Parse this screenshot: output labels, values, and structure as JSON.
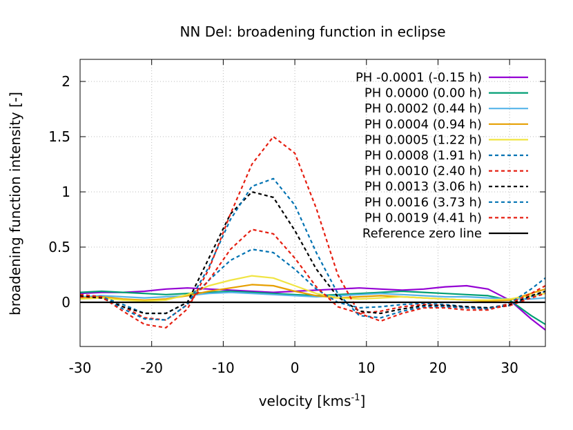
{
  "chart_data": {
    "type": "line",
    "title": "NN Del: broadening function in eclipse",
    "xlabel": "velocity [kms",
    "xlabel_sup": "-1",
    "xlabel_end": "]",
    "ylabel": "broadening function intensity [-]",
    "xlim": [
      -30,
      35
    ],
    "ylim": [
      -0.4,
      2.2
    ],
    "xticks": [
      -30,
      -20,
      -10,
      0,
      10,
      20,
      30
    ],
    "yticks": [
      0,
      0.5,
      1,
      1.5,
      2
    ],
    "xtick_labels": [
      "-30",
      "-20",
      "-10",
      "0",
      "10",
      "20",
      "30"
    ],
    "ytick_labels": [
      "0",
      "0.5",
      "1",
      "1.5",
      "2"
    ],
    "grid": true,
    "legend_position": "top-right",
    "series": [
      {
        "name": "PH -0.0001 (-0.15 h)",
        "color": "#9400d3",
        "dash": "solid",
        "x": [
          -30,
          -27,
          -24,
          -21,
          -18,
          -15,
          -12,
          -9,
          -6,
          -3,
          0,
          3,
          6,
          9,
          12,
          15,
          18,
          21,
          24,
          27,
          30,
          33,
          35
        ],
        "y": [
          0.08,
          0.09,
          0.09,
          0.1,
          0.12,
          0.13,
          0.12,
          0.11,
          0.1,
          0.09,
          0.1,
          0.11,
          0.12,
          0.13,
          0.12,
          0.11,
          0.12,
          0.14,
          0.15,
          0.12,
          0.02,
          -0.15,
          -0.25
        ]
      },
      {
        "name": "PH 0.0000 (0.00 h)",
        "color": "#009e73",
        "dash": "solid",
        "x": [
          -30,
          -27,
          -24,
          -21,
          -18,
          -15,
          -12,
          -9,
          -6,
          -3,
          0,
          3,
          6,
          9,
          12,
          15,
          18,
          21,
          24,
          27,
          30,
          33,
          35
        ],
        "y": [
          0.09,
          0.1,
          0.09,
          0.08,
          0.07,
          0.08,
          0.09,
          0.1,
          0.09,
          0.08,
          0.07,
          0.06,
          0.07,
          0.08,
          0.09,
          0.1,
          0.09,
          0.08,
          0.07,
          0.06,
          0.02,
          -0.12,
          -0.2
        ]
      },
      {
        "name": "PH 0.0002 (0.44 h)",
        "color": "#56b4e9",
        "dash": "solid",
        "x": [
          -30,
          -27,
          -24,
          -21,
          -18,
          -15,
          -12,
          -9,
          -6,
          -3,
          0,
          3,
          6,
          9,
          12,
          15,
          18,
          21,
          24,
          27,
          30,
          33,
          35
        ],
        "y": [
          0.05,
          0.06,
          0.05,
          0.04,
          0.05,
          0.06,
          0.08,
          0.09,
          0.08,
          0.07,
          0.06,
          0.05,
          0.06,
          0.07,
          0.08,
          0.07,
          0.06,
          0.05,
          0.05,
          0.04,
          0.03,
          0.03,
          0.04
        ]
      },
      {
        "name": "PH 0.0004 (0.94 h)",
        "color": "#e69f00",
        "dash": "solid",
        "x": [
          -30,
          -27,
          -24,
          -21,
          -18,
          -15,
          -12,
          -9,
          -6,
          -3,
          0,
          3,
          6,
          9,
          12,
          15,
          18,
          21,
          24,
          27,
          30,
          33,
          35
        ],
        "y": [
          0.04,
          0.05,
          0.03,
          0.02,
          0.03,
          0.06,
          0.1,
          0.13,
          0.16,
          0.15,
          0.1,
          0.06,
          0.04,
          0.05,
          0.06,
          0.05,
          0.04,
          0.03,
          0.02,
          0.01,
          0.02,
          0.08,
          0.12
        ]
      },
      {
        "name": "PH 0.0005 (1.22 h)",
        "color": "#f0e442",
        "dash": "solid",
        "x": [
          -30,
          -27,
          -24,
          -21,
          -18,
          -15,
          -12,
          -9,
          -6,
          -3,
          0,
          3,
          6,
          9,
          12,
          15,
          18,
          21,
          24,
          27,
          30,
          33,
          35
        ],
        "y": [
          0.03,
          0.04,
          0.02,
          0.01,
          0.02,
          0.07,
          0.15,
          0.2,
          0.24,
          0.22,
          0.15,
          0.08,
          0.04,
          0.03,
          0.04,
          0.05,
          0.04,
          0.03,
          0.02,
          0.02,
          0.03,
          0.06,
          0.08
        ]
      },
      {
        "name": "PH 0.0008 (1.91 h)",
        "color": "#0072b2",
        "dash": "dashed",
        "x": [
          -30,
          -27,
          -24,
          -21,
          -18,
          -15,
          -12,
          -9,
          -6,
          -3,
          0,
          3,
          6,
          9,
          12,
          15,
          18,
          21,
          24,
          27,
          30,
          33,
          35
        ],
        "y": [
          0.06,
          0.05,
          -0.02,
          -0.1,
          -0.1,
          0.0,
          0.2,
          0.38,
          0.48,
          0.45,
          0.3,
          0.12,
          0.0,
          -0.05,
          -0.04,
          -0.02,
          -0.01,
          -0.02,
          -0.04,
          -0.05,
          -0.03,
          0.05,
          0.1
        ]
      },
      {
        "name": "PH 0.0010 (2.40 h)",
        "color": "#e51e10",
        "dash": "dashed",
        "x": [
          -30,
          -27,
          -24,
          -21,
          -18,
          -15,
          -12,
          -9,
          -6,
          -3,
          0,
          3,
          6,
          9,
          12,
          15,
          18,
          21,
          24,
          27,
          30,
          33,
          35
        ],
        "y": [
          0.05,
          0.04,
          -0.04,
          -0.14,
          -0.16,
          -0.02,
          0.2,
          0.48,
          0.66,
          0.62,
          0.4,
          0.14,
          -0.04,
          -0.1,
          -0.08,
          -0.04,
          -0.02,
          -0.03,
          -0.05,
          -0.06,
          -0.03,
          0.04,
          0.08
        ]
      },
      {
        "name": "PH 0.0013 (3.06 h)",
        "color": "#000000",
        "dash": "dashed",
        "x": [
          -30,
          -27,
          -24,
          -21,
          -18,
          -15,
          -12,
          -9,
          -6,
          -3,
          0,
          3,
          6,
          9,
          12,
          15,
          18,
          21,
          24,
          27,
          30,
          33,
          35
        ],
        "y": [
          0.06,
          0.04,
          -0.04,
          -0.1,
          -0.1,
          0.0,
          0.4,
          0.8,
          1.0,
          0.95,
          0.65,
          0.3,
          0.05,
          -0.08,
          -0.1,
          -0.06,
          -0.03,
          -0.03,
          -0.04,
          -0.05,
          -0.02,
          0.06,
          0.1
        ]
      },
      {
        "name": "PH 0.0016 (3.73 h)",
        "color": "#0072b2",
        "dash": "dashed",
        "x": [
          -30,
          -27,
          -24,
          -21,
          -18,
          -15,
          -12,
          -9,
          -6,
          -3,
          0,
          3,
          6,
          9,
          12,
          15,
          18,
          21,
          24,
          27,
          30,
          33,
          35
        ],
        "y": [
          0.07,
          0.05,
          -0.06,
          -0.15,
          -0.16,
          -0.02,
          0.32,
          0.75,
          1.05,
          1.12,
          0.88,
          0.45,
          0.08,
          -0.12,
          -0.14,
          -0.08,
          -0.04,
          -0.04,
          -0.05,
          -0.06,
          -0.01,
          0.12,
          0.22
        ]
      },
      {
        "name": "PH 0.0019 (4.41 h)",
        "color": "#e51e10",
        "dash": "dashed",
        "x": [
          -30,
          -27,
          -24,
          -21,
          -18,
          -15,
          -12,
          -9,
          -6,
          -3,
          0,
          3,
          6,
          9,
          12,
          15,
          18,
          21,
          24,
          27,
          30,
          33,
          35
        ],
        "y": [
          0.07,
          0.05,
          -0.08,
          -0.2,
          -0.23,
          -0.06,
          0.3,
          0.8,
          1.25,
          1.5,
          1.35,
          0.85,
          0.25,
          -0.1,
          -0.17,
          -0.1,
          -0.05,
          -0.05,
          -0.07,
          -0.07,
          -0.01,
          0.08,
          0.15
        ]
      },
      {
        "name": "Reference zero line",
        "color": "#000000",
        "dash": "solid",
        "x": [
          -30,
          35
        ],
        "y": [
          0,
          0
        ]
      }
    ]
  }
}
